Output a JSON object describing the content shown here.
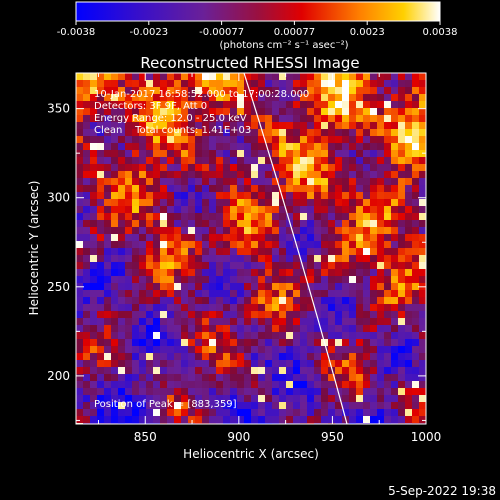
{
  "colorbar": {
    "tick_labels": [
      "-0.0038",
      "-0.0023",
      "-0.00077",
      "0.00077",
      "0.0023",
      "0.0038"
    ],
    "units": "(photons cm⁻² s⁻¹ asec⁻²)"
  },
  "plot": {
    "title": "Reconstructed RHESSI Image",
    "info_lines": [
      "10-Jan-2017 16:58:52.000 to 17:00:28.000",
      "Detectors: 3F 9F, Att 0",
      "Energy Range: 12.0 - 25.0 keV",
      "Clean    Total counts: 1.41E+03"
    ],
    "peak_label": "Position of Peak = [883,359]",
    "xlabel": "Heliocentric X (arcsec)",
    "ylabel": "Heliocentric Y (arcsec)",
    "x_tick_labels": [
      "850",
      "900",
      "950",
      "1000"
    ],
    "y_tick_labels": [
      "200",
      "250",
      "300",
      "350"
    ]
  },
  "footer": {
    "timestamp": "5-Sep-2022 19:38"
  },
  "chart_data": {
    "type": "heatmap",
    "title": "Reconstructed RHESSI Image",
    "xlabel": "Heliocentric X (arcsec)",
    "ylabel": "Heliocentric Y (arcsec)",
    "xlim": [
      813,
      1000
    ],
    "ylim": [
      173,
      370
    ],
    "color_range": [
      -0.0038,
      0.0038
    ],
    "colormap": "blue-purple-red-yellow-white",
    "peak": [
      883,
      359
    ]
  }
}
